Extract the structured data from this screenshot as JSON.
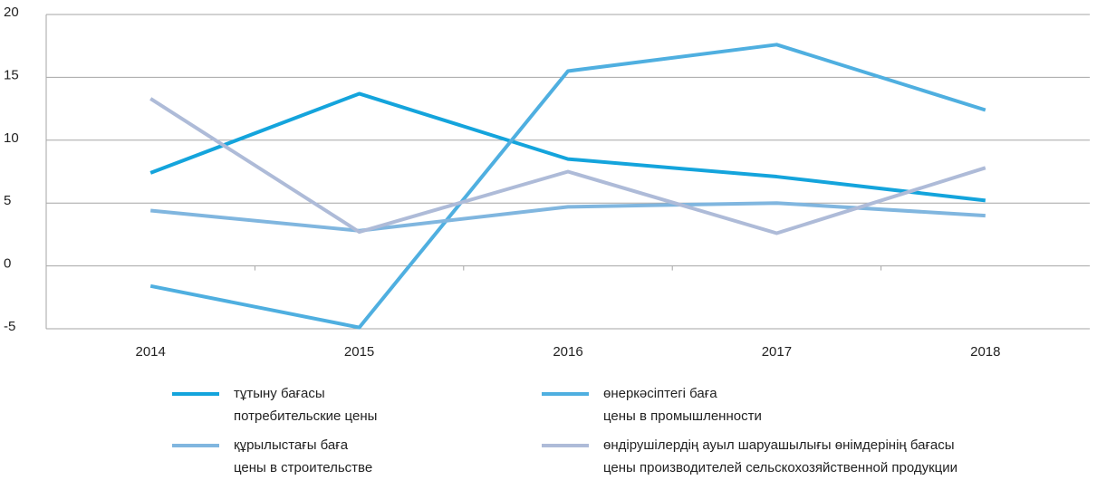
{
  "chart_data": {
    "type": "line",
    "categories": [
      "2014",
      "2015",
      "2016",
      "2017",
      "2018"
    ],
    "series": [
      {
        "name": [
          "тұтыну бағасы",
          "потребительские цены"
        ],
        "color": "#14a4dc",
        "values": [
          7.4,
          13.7,
          8.5,
          7.1,
          5.2
        ]
      },
      {
        "name": [
          "өнеркәсіптегі баға",
          "цены в промышленности"
        ],
        "color": "#4fafe0",
        "values": [
          -1.6,
          -4.9,
          15.5,
          17.6,
          12.4
        ]
      },
      {
        "name": [
          "құрылыстағы баға",
          "цены в строительстве"
        ],
        "color": "#80b6df",
        "values": [
          4.4,
          2.8,
          4.7,
          5.0,
          4.0
        ]
      },
      {
        "name": [
          "өндірушілердің ауыл шаруашылығы өнімдерінің бағасы",
          "цены производителей сельскохозяйственной продукции"
        ],
        "color": "#aebbd8",
        "values": [
          13.3,
          2.7,
          7.5,
          2.6,
          7.8
        ]
      }
    ],
    "ylim": [
      -5,
      20
    ],
    "yticks": [
      -5,
      0,
      5,
      10,
      15,
      20
    ],
    "grid": true
  }
}
